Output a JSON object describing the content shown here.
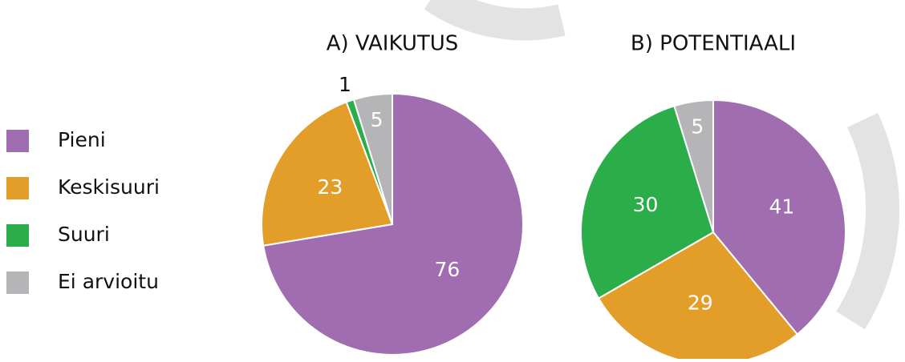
{
  "chart_data": [
    {
      "type": "pie",
      "title": "A) VAIKUTUS",
      "categories": [
        "Pieni",
        "Keskisuuri",
        "Suuri",
        "Ei arvioitu"
      ],
      "values": [
        76,
        23,
        1,
        5
      ],
      "colors": [
        "#a06eb0",
        "#e39e2a",
        "#2bad4a",
        "#b5b5b7"
      ]
    },
    {
      "type": "pie",
      "title": "B) POTENTIAALI",
      "values": [
        41,
        29,
        30,
        5
      ],
      "colors": [
        "#a06eb0",
        "#e39e2a",
        "#2bad4a",
        "#b5b5b7"
      ]
    }
  ]
}
